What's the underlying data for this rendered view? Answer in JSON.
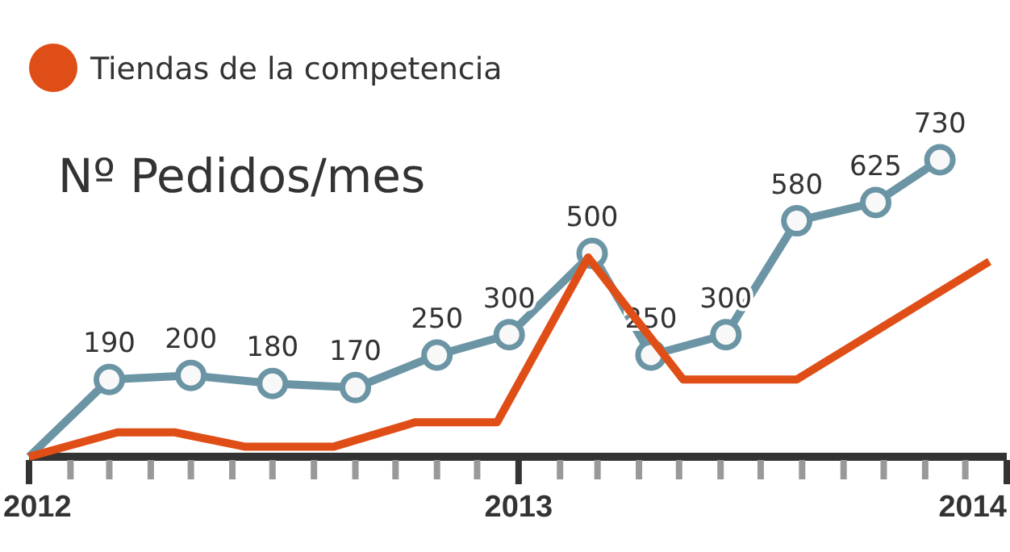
{
  "chart_data": {
    "type": "line",
    "title": "Nº Pedidos/mes",
    "xlim": [
      "2012-01-01",
      "2014-01-01"
    ],
    "xticks": [
      "2012",
      {
        "value": "2012-02-01",
        "label": null
      },
      {
        "value": "2012-03-01",
        "label": null
      },
      {
        "value": "2012-04-01",
        "label": null
      },
      {
        "value": "2012-05-01",
        "label": null
      },
      {
        "value": "2012-06-01",
        "label": null
      },
      {
        "value": "2012-07-01",
        "label": null
      },
      {
        "value": "2012-08-01",
        "label": null
      },
      {
        "value": "2012-09-01",
        "label": null
      },
      {
        "value": "2012-10-01",
        "label": null
      },
      {
        "value": "2012-11-01",
        "label": null
      },
      {
        "value": "2012-12-01",
        "label": null
      },
      "2013",
      {
        "value": "2013-02-01",
        "label": null
      },
      {
        "value": "2013-03-01",
        "label": null
      },
      {
        "value": "2013-04-01",
        "label": null
      },
      {
        "value": "2013-05-01",
        "label": null
      },
      {
        "value": "2013-06-01",
        "label": null
      },
      {
        "value": "2013-07-01",
        "label": null
      },
      {
        "value": "2013-08-01",
        "label": null
      },
      {
        "value": "2013-09-01",
        "label": null
      },
      {
        "value": "2013-10-01",
        "label": null
      },
      {
        "value": "2013-11-01",
        "label": null
      },
      {
        "value": "2013-12-01",
        "label": null
      },
      "2014"
    ],
    "tick_labels": "x",
    "legend": "top left",
    "marker": "circle",
    "series": [
      {
        "color": "#6b95a5",
        "x": [
          "2012-01-01",
          "2012-03-01",
          "2012-05-01",
          "2012-07-01",
          "2012-09-01",
          "2012-11-01",
          "2012-12-25",
          "2013-02-25",
          "2013-04-10",
          "2013-06-05",
          "2013-07-28",
          "2013-09-25",
          "2013-11-12"
        ],
        "values": [
          0,
          190,
          200,
          180,
          170,
          250,
          300,
          500,
          250,
          300,
          580,
          625,
          730
        ],
        "value_labels": [
          null,
          "190",
          "200",
          "180",
          "170",
          "250",
          "300",
          "500",
          "250",
          "300",
          "580",
          "625",
          "730"
        ]
      },
      {
        "name": "Tiendas de la competencia",
        "color": "#e04e17",
        "marker": "none",
        "x": [
          "2012-01-01",
          "2012-03-07",
          "2012-04-19",
          "2012-06-10",
          "2012-08-16",
          "2012-10-16",
          "2012-12-16",
          "2013-02-22",
          "2013-05-04",
          "2013-07-28",
          "2013-12-19"
        ],
        "values": [
          0,
          60,
          60,
          25,
          25,
          85,
          85,
          490,
          190,
          190,
          480
        ]
      }
    ]
  }
}
